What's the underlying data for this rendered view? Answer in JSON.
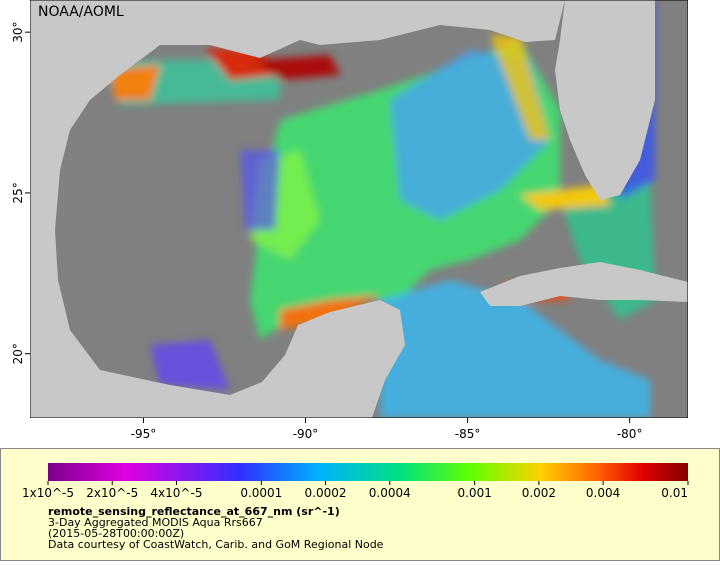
{
  "map": {
    "credit": "NOAA/AOML",
    "lon_range": [
      -98.5,
      -78.2
    ],
    "lat_range": [
      18,
      31
    ],
    "lon_ticks": [
      {
        "value": -95,
        "label": "-95°"
      },
      {
        "value": -90,
        "label": "-90°"
      },
      {
        "value": -85,
        "label": "-85°"
      },
      {
        "value": -80,
        "label": "-80°"
      }
    ],
    "lat_ticks": [
      {
        "value": 30,
        "label": "30°"
      },
      {
        "value": 25,
        "label": "25°"
      },
      {
        "value": 20,
        "label": "20°"
      }
    ]
  },
  "colorbar": {
    "range": [
      1e-05,
      0.01
    ],
    "log_scale": true,
    "ticks": [
      {
        "value": 1e-05,
        "label": "1x10^-5"
      },
      {
        "value": 2e-05,
        "label": "2x10^-5"
      },
      {
        "value": 4e-05,
        "label": "4x10^-5"
      },
      0.0001,
      0.0002,
      0.0004,
      0.001,
      0.002,
      0.004,
      0.01
    ]
  },
  "legend": {
    "variable": "remote_sensing_reflectance_at_667_nm (sr^-1)",
    "dataset": "3-Day Aggregated MODIS Aqua Rrs667",
    "time": "(2015-05-28T00:00:00Z)",
    "source": "Data courtesy of CoastWatch, Carib. and GoM Regional Node"
  }
}
